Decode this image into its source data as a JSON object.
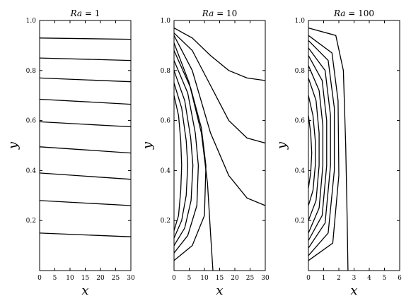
{
  "chart_data": [
    {
      "type": "line",
      "title": "Ra = 1",
      "title_var": "Ra",
      "title_value": "= 1",
      "xlabel": "x",
      "ylabel": "y",
      "xlim": [
        0,
        30
      ],
      "ylim": [
        0,
        1
      ],
      "xticks": [
        0,
        5,
        10,
        15,
        20,
        25,
        30
      ],
      "yticks": [
        0.2,
        0.4,
        0.6,
        0.8,
        1.0
      ],
      "series": [
        {
          "x": [
            0,
            30
          ],
          "y": [
            0.15,
            0.135
          ]
        },
        {
          "x": [
            0,
            30
          ],
          "y": [
            0.28,
            0.26
          ]
        },
        {
          "x": [
            0,
            30
          ],
          "y": [
            0.39,
            0.365
          ]
        },
        {
          "x": [
            0,
            30
          ],
          "y": [
            0.495,
            0.47
          ]
        },
        {
          "x": [
            0,
            30
          ],
          "y": [
            0.595,
            0.575
          ]
        },
        {
          "x": [
            0,
            30
          ],
          "y": [
            0.685,
            0.665
          ]
        },
        {
          "x": [
            0,
            30
          ],
          "y": [
            0.77,
            0.755
          ]
        },
        {
          "x": [
            0,
            30
          ],
          "y": [
            0.85,
            0.84
          ]
        },
        {
          "x": [
            0,
            30
          ],
          "y": [
            0.93,
            0.925
          ]
        }
      ]
    },
    {
      "type": "line",
      "title": "Ra = 10",
      "title_var": "Ra",
      "title_value": "= 10",
      "xlabel": "x",
      "ylabel": "y",
      "xlim": [
        0,
        30
      ],
      "ylim": [
        0,
        1
      ],
      "xticks": [
        0,
        5,
        10,
        15,
        20,
        25,
        30
      ],
      "yticks": [
        0.2,
        0.4,
        0.6,
        0.8,
        1.0
      ],
      "series": [
        {
          "x": [
            0,
            1.5,
            2.2,
            2.5,
            2.2,
            1.5,
            0
          ],
          "y": [
            0.7,
            0.62,
            0.52,
            0.42,
            0.32,
            0.22,
            0.16
          ]
        },
        {
          "x": [
            0,
            2.5,
            4.0,
            4.5,
            4.0,
            2.5,
            0
          ],
          "y": [
            0.75,
            0.65,
            0.52,
            0.42,
            0.3,
            0.2,
            0.13
          ]
        },
        {
          "x": [
            0,
            3.5,
            5.5,
            6.2,
            5.6,
            3.5,
            0
          ],
          "y": [
            0.8,
            0.68,
            0.53,
            0.42,
            0.28,
            0.17,
            0.1
          ]
        },
        {
          "x": [
            0,
            4.5,
            7.0,
            8.0,
            7.5,
            4.5,
            0
          ],
          "y": [
            0.84,
            0.71,
            0.55,
            0.42,
            0.26,
            0.14,
            0.07
          ]
        },
        {
          "x": [
            0,
            5.5,
            9.0,
            10.5,
            10.0,
            6.0,
            0
          ],
          "y": [
            0.88,
            0.73,
            0.57,
            0.42,
            0.22,
            0.1,
            0.04
          ]
        },
        {
          "x": [
            0,
            5.0,
            9.0,
            11.0,
            12.0,
            12.8
          ],
          "y": [
            0.91,
            0.75,
            0.55,
            0.35,
            0.15,
            0.0
          ]
        },
        {
          "x": [
            0,
            6.0,
            12.0,
            18.0,
            24.0,
            30.0
          ],
          "y": [
            0.94,
            0.8,
            0.55,
            0.38,
            0.29,
            0.26
          ]
        },
        {
          "x": [
            0,
            6.0,
            12.0,
            18.0,
            24.0,
            30.0
          ],
          "y": [
            0.95,
            0.88,
            0.74,
            0.6,
            0.53,
            0.51
          ]
        },
        {
          "x": [
            0,
            6.0,
            12.0,
            18.0,
            24.0,
            30.0
          ],
          "y": [
            0.97,
            0.93,
            0.86,
            0.8,
            0.77,
            0.76
          ]
        }
      ]
    },
    {
      "type": "line",
      "title": "Ra = 100",
      "title_var": "Ra",
      "title_value": "= 100",
      "xlabel": "x",
      "ylabel": "y",
      "xlim": [
        0,
        6
      ],
      "ylim": [
        0,
        1
      ],
      "xticks": [
        0,
        1,
        2,
        3,
        4,
        5,
        6
      ],
      "yticks": [
        0.2,
        0.4,
        0.6,
        0.8,
        1.0
      ],
      "series": [
        {
          "x": [
            0,
            0.15,
            0.22,
            0.15,
            0
          ],
          "y": [
            0.62,
            0.55,
            0.47,
            0.39,
            0.33
          ]
        },
        {
          "x": [
            0,
            0.3,
            0.45,
            0.45,
            0.3,
            0
          ],
          "y": [
            0.7,
            0.62,
            0.52,
            0.42,
            0.32,
            0.26
          ]
        },
        {
          "x": [
            0,
            0.5,
            0.7,
            0.7,
            0.5,
            0
          ],
          "y": [
            0.77,
            0.68,
            0.55,
            0.42,
            0.28,
            0.2
          ]
        },
        {
          "x": [
            0,
            0.7,
            0.95,
            0.95,
            0.7,
            0
          ],
          "y": [
            0.82,
            0.72,
            0.58,
            0.42,
            0.25,
            0.15
          ]
        },
        {
          "x": [
            0,
            0.9,
            1.2,
            1.2,
            0.9,
            0
          ],
          "y": [
            0.86,
            0.76,
            0.6,
            0.42,
            0.22,
            0.12
          ]
        },
        {
          "x": [
            0,
            1.1,
            1.45,
            1.45,
            1.1,
            0
          ],
          "y": [
            0.89,
            0.8,
            0.62,
            0.42,
            0.19,
            0.09
          ]
        },
        {
          "x": [
            0,
            1.3,
            1.7,
            1.7,
            1.3,
            0
          ],
          "y": [
            0.92,
            0.84,
            0.65,
            0.4,
            0.15,
            0.06
          ]
        },
        {
          "x": [
            0,
            1.55,
            1.95,
            2.0,
            1.6,
            0
          ],
          "y": [
            0.94,
            0.87,
            0.68,
            0.38,
            0.11,
            0.04
          ]
        },
        {
          "x": [
            0,
            1.8,
            2.3,
            2.45,
            2.55,
            2.6
          ],
          "y": [
            0.97,
            0.94,
            0.8,
            0.5,
            0.2,
            0.0
          ]
        }
      ]
    }
  ]
}
